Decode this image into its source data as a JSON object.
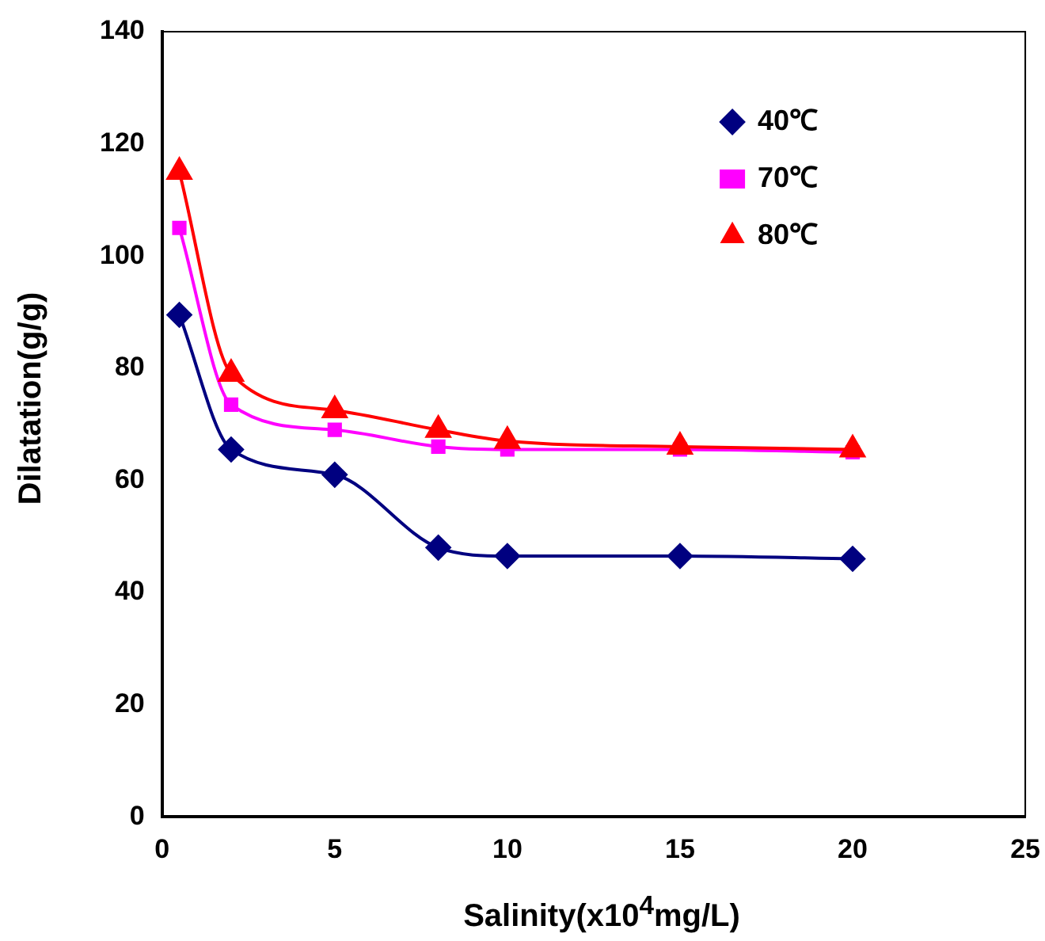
{
  "chart_data": {
    "type": "line",
    "xlabel": "Salinity(x10$^{4}$mg/L)",
    "ylabel": "Dilatation(g/g)",
    "x": [
      0.5,
      2,
      5,
      8,
      10,
      15,
      20
    ],
    "series": [
      {
        "name": "40℃",
        "color": "#000080",
        "marker": "diamond",
        "values": [
          89.5,
          65.5,
          61,
          48,
          46.5,
          46.5,
          46
        ]
      },
      {
        "name": "70℃",
        "color": "#ff00ff",
        "marker": "square",
        "values": [
          105,
          73.5,
          69,
          66,
          65.5,
          65.5,
          65
        ]
      },
      {
        "name": "80℃",
        "color": "#ff0000",
        "marker": "triangle",
        "values": [
          115,
          79,
          72.5,
          69,
          67,
          66,
          65.5
        ]
      }
    ],
    "xlim": [
      0,
      25
    ],
    "xticks": [
      0,
      5,
      10,
      15,
      20,
      25
    ],
    "ylim": [
      0,
      140
    ],
    "yticks": [
      0,
      20,
      40,
      60,
      80,
      100,
      120,
      140
    ],
    "grid": false,
    "legend": "top right"
  }
}
